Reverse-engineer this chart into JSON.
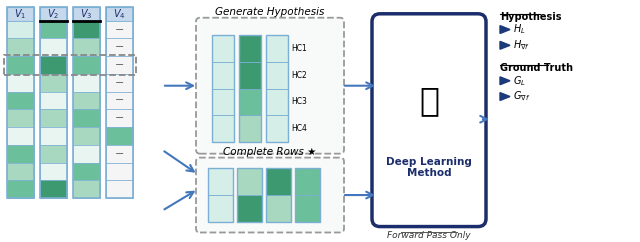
{
  "bg": "#ffffff",
  "navy": "#1c2d6b",
  "border_blue": "#7bafd4",
  "arrow_blue": "#4477bb",
  "tri_color": "#1c3a7a",
  "header_bg": "#c5d8ec",
  "v1_rows": [
    "#d5eee8",
    "#a8d8c0",
    "#6bbf9a",
    "#e8f5f0",
    "#6bbf9a",
    "#a8d8c0",
    "#e8f5f0",
    "#6bbf9a",
    "#a8d8c0",
    "#6bbf9a"
  ],
  "v2_rows": [
    "#6bbf9a",
    "#e8f5f0",
    "#3d9970",
    "#a8d8c0",
    "#e8f5f0",
    "#a8d8c0",
    "#e8f5f0",
    "#a8d8c0",
    "#e8f5f0",
    "#3d9970"
  ],
  "v3_rows": [
    "#3d9970",
    "#a8d8c0",
    "#6bbf9a",
    "#e8f5f0",
    "#a8d8c0",
    "#6bbf9a",
    "#a8d8c0",
    "#e8f5f0",
    "#6bbf9a",
    "#a8d8c0"
  ],
  "v4_rows": [
    "#f5f5f5",
    "#f5f5f5",
    "#f5f5f5",
    "#f5f5f5",
    "#f5f5f5",
    "#f5f5f5",
    "#6bbf9a",
    "#f5f5f5",
    "#f5f5f5",
    "#f5f5f5"
  ],
  "v4_dash": [
    true,
    true,
    true,
    true,
    true,
    true,
    false,
    true,
    false,
    false
  ],
  "gh_col1": [
    "#d5eee8",
    "#d5eee8",
    "#d5eee8",
    "#d5eee8"
  ],
  "gh_col2": [
    "#3d9970",
    "#3d9970",
    "#6bbf9a",
    "#a8d8c0"
  ],
  "gh_col3": [
    "#d5eee8",
    "#d5eee8",
    "#d5eee8",
    "#d5eee8"
  ],
  "cr_col1": [
    "#d5eee8",
    "#d5eee8"
  ],
  "cr_col2": [
    "#a8d8c0",
    "#3d9970"
  ],
  "cr_col3": [
    "#3d9970",
    "#a8d8c0"
  ],
  "cr_col4": [
    "#6bbf9a",
    "#6bbf9a"
  ],
  "hc_labels": [
    "HC1",
    "HC2",
    "HC3",
    "HC4"
  ],
  "title_gh": "Generate Hypothesis",
  "title_cr": "Complete Rows ★",
  "dlm_text": "Deep Learning\nMethod",
  "fwd_text": "Forward Pass Only",
  "leg_hyp": "Hypothesis",
  "leg_gt": "Ground Truth",
  "leg_hl": "$H_L$",
  "leg_hvf": "$H_{\\nabla f}$",
  "leg_gl": "$G_L$",
  "leg_gvf": "$G_{\\nabla f}$",
  "col_labels": [
    "$V_1$",
    "$V_2$",
    "$V_3$",
    "$V_4$"
  ]
}
